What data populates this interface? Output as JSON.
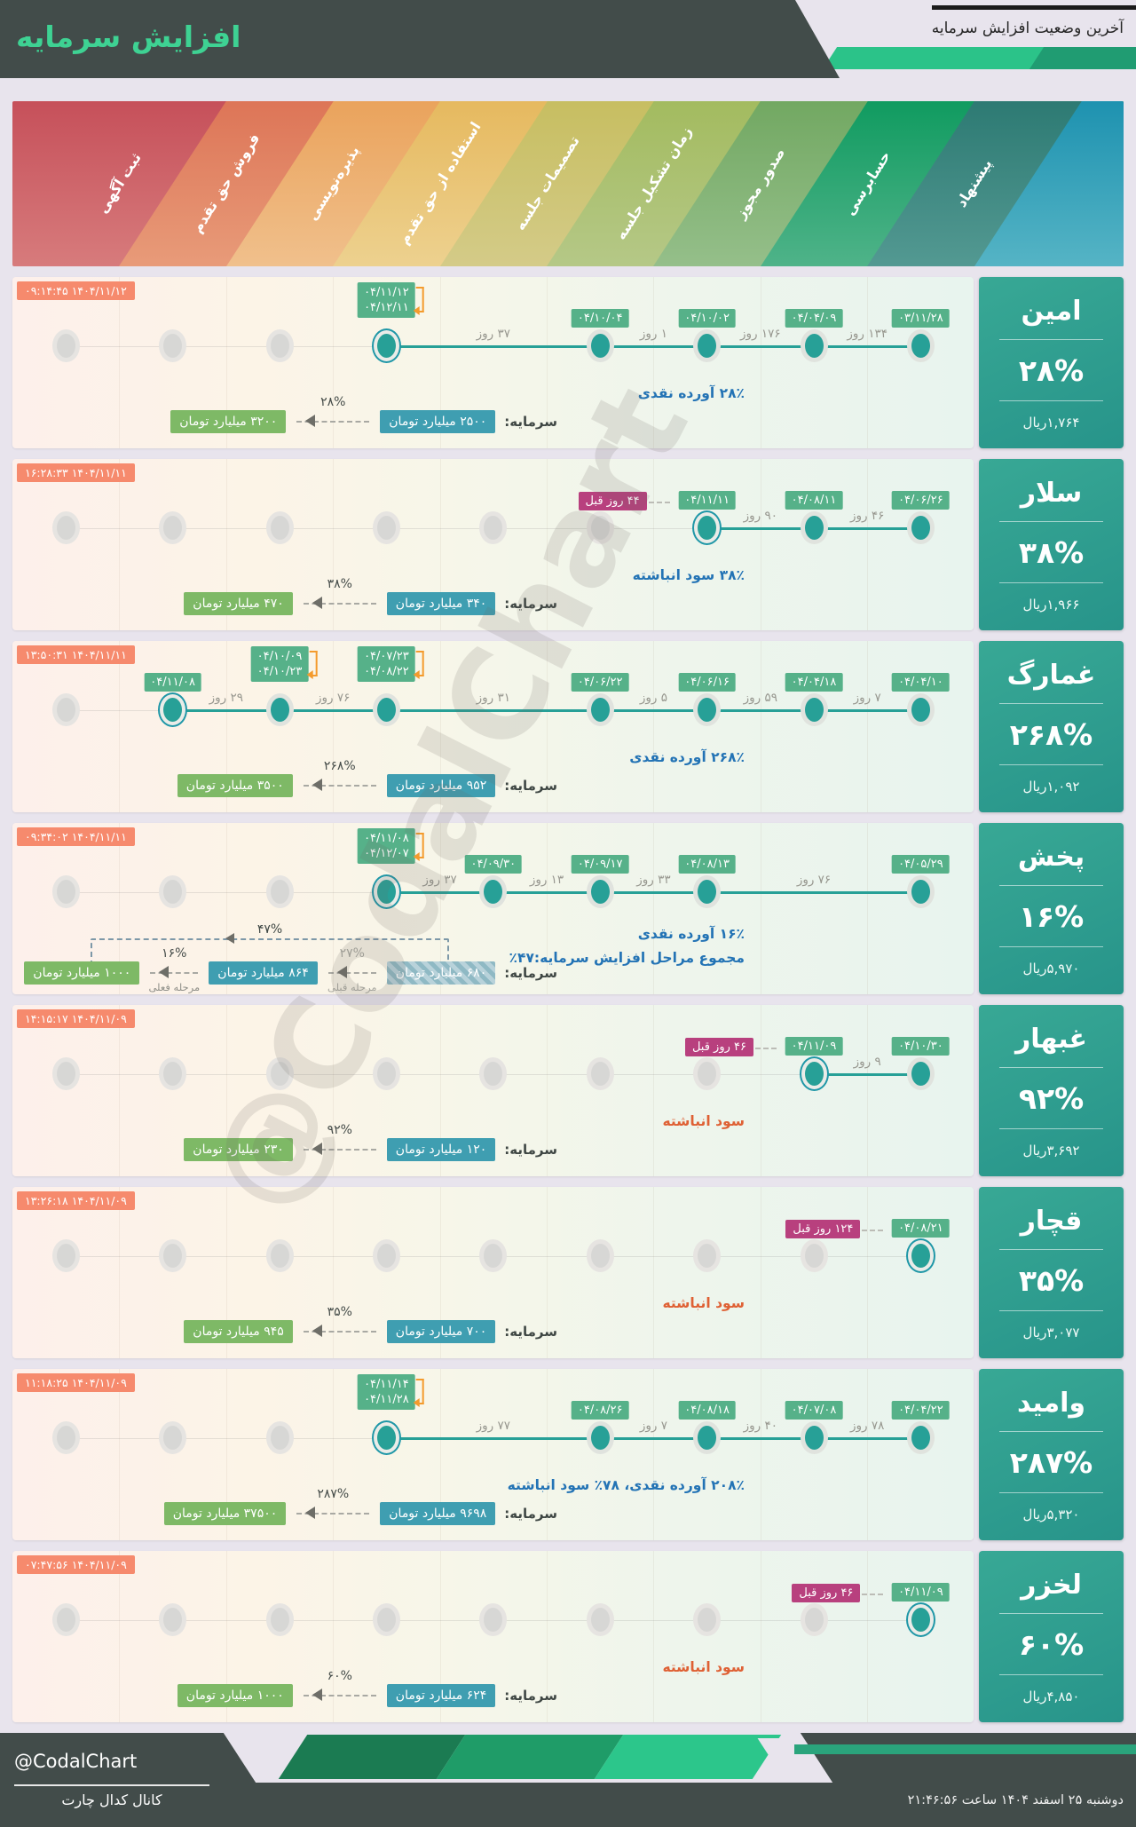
{
  "header": {
    "title": "افزایش سرمایه",
    "subtitle": "آخرین وضعیت افزایش سرمایه"
  },
  "watermark": "@CodalChart",
  "stages": [
    {
      "label": "ثبت آگهی",
      "top": "#c6505a",
      "bottom": "#d77b7c"
    },
    {
      "label": "فروش حق تقدم",
      "top": "#dd7557",
      "bottom": "#e89b79"
    },
    {
      "label": "پذیره‌نویسی",
      "top": "#eaa35c",
      "bottom": "#f0c08c"
    },
    {
      "label": "استفاده از حق تقدم",
      "top": "#e6b95f",
      "bottom": "#edd18f"
    },
    {
      "label": "تصمیمات جلسه",
      "top": "#c7be61",
      "bottom": "#d4cb88"
    },
    {
      "label": "زمان تشکیل جلسه",
      "top": "#a3bb5f",
      "bottom": "#b5c887"
    },
    {
      "label": "صدور مجوز",
      "top": "#72a862",
      "bottom": "#95bf8a"
    },
    {
      "label": "حسابرسی",
      "top": "#109b60",
      "bottom": "#4fb389"
    },
    {
      "label": "پیشنهاد",
      "top": "#2d7a73",
      "bottom": "#539992"
    }
  ],
  "banner_cap": {
    "top": "#1e92b0",
    "bottom": "#55b4c5"
  },
  "rows": [
    {
      "name": "امین",
      "timestamp": "۱۴۰۴/۱۱/۱۲ ۰۹:۱۴:۴۵",
      "dots": [
        {
          "col": 1,
          "state": "inactive"
        },
        {
          "col": 2,
          "state": "inactive"
        },
        {
          "col": 3,
          "state": "inactive"
        },
        {
          "col": 4,
          "state": "current",
          "dates": [
            "۰۴/۱۱/۱۲",
            "۰۴/۱۲/۱۱"
          ],
          "bracket": true
        },
        {
          "col": 6,
          "state": "done",
          "dates": [
            "۰۴/۱۰/۰۴"
          ]
        },
        {
          "col": 7,
          "state": "done",
          "dates": [
            "۰۴/۱۰/۰۲"
          ]
        },
        {
          "col": 8,
          "state": "done",
          "dates": [
            "۰۴/۰۴/۰۹"
          ]
        },
        {
          "col": 9,
          "state": "done",
          "dates": [
            "۰۳/۱۱/۲۸"
          ]
        }
      ],
      "line": {
        "from": 4,
        "to": 9
      },
      "gaps": [
        {
          "at": [
            4,
            6
          ],
          "label": "۳۷ روز"
        },
        {
          "at": [
            6,
            7
          ],
          "label": "۱ روز"
        },
        {
          "at": [
            7,
            8
          ],
          "label": "۱۷۶ روز"
        },
        {
          "at": [
            8,
            9
          ],
          "label": "۱۳۴ روز"
        }
      ],
      "desc": [
        {
          "text": "۲۸٪ آورده نقدی",
          "color": "blue"
        }
      ],
      "capital": {
        "label": "سرمایه:",
        "stages": [
          {
            "value": "۲۵۰۰ میلیارد تومان",
            "style": "teal"
          },
          {
            "arrow": true,
            "percent": "۲۸%"
          },
          {
            "value": "۳۲۰۰ میلیارد تومان",
            "style": "green"
          }
        ]
      },
      "card": {
        "name": "امین",
        "percent": "۲۸%",
        "price": "۱,۷۶۴ریال"
      }
    },
    {
      "name": "سلار",
      "timestamp": "۱۴۰۴/۱۱/۱۱ ۱۶:۲۸:۳۳",
      "dots": [
        {
          "col": 1,
          "state": "inactive"
        },
        {
          "col": 2,
          "state": "inactive"
        },
        {
          "col": 3,
          "state": "inactive"
        },
        {
          "col": 4,
          "state": "inactive"
        },
        {
          "col": 5,
          "state": "inactive"
        },
        {
          "col": 6,
          "state": "inactive"
        },
        {
          "col": 7,
          "state": "current",
          "dates": [
            "۰۴/۱۱/۱۱"
          ],
          "ago": "۴۴ روز قبل"
        },
        {
          "col": 8,
          "state": "done",
          "dates": [
            "۰۴/۰۸/۱۱"
          ]
        },
        {
          "col": 9,
          "state": "done",
          "dates": [
            "۰۴/۰۶/۲۶"
          ]
        }
      ],
      "line": {
        "from": 7,
        "to": 9
      },
      "gaps": [
        {
          "at": [
            7,
            8
          ],
          "label": "۹۰ روز"
        },
        {
          "at": [
            8,
            9
          ],
          "label": "۴۶ روز"
        }
      ],
      "desc": [
        {
          "text": "۳۸٪ سود انباشته",
          "color": "blue"
        }
      ],
      "capital": {
        "label": "سرمایه:",
        "stages": [
          {
            "value": "۳۴۰ میلیارد تومان",
            "style": "teal"
          },
          {
            "arrow": true,
            "percent": "۳۸%"
          },
          {
            "value": "۴۷۰ میلیارد تومان",
            "style": "green"
          }
        ]
      },
      "card": {
        "name": "سلار",
        "percent": "۳۸%",
        "price": "۱,۹۶۶ریال"
      }
    },
    {
      "name": "غمارگ",
      "timestamp": "۱۴۰۴/۱۱/۱۱ ۱۳:۵۰:۳۱",
      "dots": [
        {
          "col": 1,
          "state": "inactive"
        },
        {
          "col": 2,
          "state": "current",
          "dates": [
            "۰۴/۱۱/۰۸"
          ]
        },
        {
          "col": 3,
          "state": "done",
          "dates": [
            "۰۴/۱۰/۰۹",
            "۰۴/۱۰/۲۳"
          ],
          "bracket": true
        },
        {
          "col": 4,
          "state": "done",
          "dates": [
            "۰۴/۰۷/۲۳",
            "۰۴/۰۸/۲۲"
          ],
          "bracket": true
        },
        {
          "col": 6,
          "state": "done",
          "dates": [
            "۰۴/۰۶/۲۲"
          ]
        },
        {
          "col": 7,
          "state": "done",
          "dates": [
            "۰۴/۰۶/۱۶"
          ]
        },
        {
          "col": 8,
          "state": "done",
          "dates": [
            "۰۴/۰۴/۱۸"
          ]
        },
        {
          "col": 9,
          "state": "done",
          "dates": [
            "۰۴/۰۴/۱۰"
          ]
        }
      ],
      "line": {
        "from": 2,
        "to": 9
      },
      "gaps": [
        {
          "at": [
            2,
            3
          ],
          "label": "۲۹ روز"
        },
        {
          "at": [
            3,
            4
          ],
          "label": "۷۶ روز"
        },
        {
          "at": [
            4,
            6
          ],
          "label": "۳۱ روز"
        },
        {
          "at": [
            6,
            7
          ],
          "label": "۵ روز"
        },
        {
          "at": [
            7,
            8
          ],
          "label": "۵۹ روز"
        },
        {
          "at": [
            8,
            9
          ],
          "label": "۷ روز"
        }
      ],
      "desc": [
        {
          "text": "۲۶۸٪ آورده نقدی",
          "color": "blue"
        }
      ],
      "capital": {
        "label": "سرمایه:",
        "stages": [
          {
            "value": "۹۵۲ میلیارد تومان",
            "style": "teal"
          },
          {
            "arrow": true,
            "percent": "۲۶۸%"
          },
          {
            "value": "۳۵۰۰ میلیارد تومان",
            "style": "green"
          }
        ]
      },
      "card": {
        "name": "غمارگ",
        "percent": "۲۶۸%",
        "price": "۱,۰۹۲ریال"
      }
    },
    {
      "name": "پخش",
      "timestamp": "۱۴۰۴/۱۱/۱۱ ۰۹:۳۴:۰۲",
      "dots": [
        {
          "col": 1,
          "state": "inactive"
        },
        {
          "col": 2,
          "state": "inactive"
        },
        {
          "col": 3,
          "state": "inactive"
        },
        {
          "col": 4,
          "state": "current",
          "dates": [
            "۰۴/۱۱/۰۸",
            "۰۴/۱۲/۰۷"
          ],
          "bracket": true
        },
        {
          "col": 5,
          "state": "done",
          "dates": [
            "۰۴/۰۹/۳۰"
          ]
        },
        {
          "col": 6,
          "state": "done",
          "dates": [
            "۰۴/۰۹/۱۷"
          ]
        },
        {
          "col": 7,
          "state": "done",
          "dates": [
            "۰۴/۰۸/۱۳"
          ]
        },
        {
          "col": 9,
          "state": "done",
          "dates": [
            "۰۴/۰۵/۲۹"
          ]
        }
      ],
      "line": {
        "from": 4,
        "to": 9
      },
      "gaps": [
        {
          "at": [
            4,
            5
          ],
          "label": "۳۷ روز"
        },
        {
          "at": [
            5,
            6
          ],
          "label": "۱۳ روز"
        },
        {
          "at": [
            6,
            7
          ],
          "label": "۳۳ روز"
        },
        {
          "at": [
            7,
            9
          ],
          "label": "۷۶ روز"
        }
      ],
      "desc": [
        {
          "text": "۱۶٪ آورده نقدی",
          "color": "blue"
        },
        {
          "text": "مجموع مراحل افزایش سرمایه:۴۷٪",
          "color": "blue"
        }
      ],
      "capital": {
        "label": "سرمایه:",
        "stages": [
          {
            "value": "۶۸۰ میلیارد تومان",
            "style": "hatched"
          },
          {
            "arrow": true,
            "percent": "۲۷%",
            "sub": "مرحله قبلی",
            "dim": true
          },
          {
            "value": "۸۶۴ میلیارد تومان",
            "style": "teal"
          },
          {
            "arrow": true,
            "percent": "۱۶%",
            "sub": "مرحله فعلی"
          },
          {
            "value": "۱۰۰۰ میلیارد تومان",
            "style": "green"
          }
        ],
        "total": {
          "percent": "۴۷%"
        }
      },
      "card": {
        "name": "پخش",
        "percent": "۱۶%",
        "price": "۵,۹۷۰ریال"
      }
    },
    {
      "name": "غبهار",
      "timestamp": "۱۴۰۴/۱۱/۰۹ ۱۴:۱۵:۱۷",
      "dots": [
        {
          "col": 1,
          "state": "inactive"
        },
        {
          "col": 2,
          "state": "inactive"
        },
        {
          "col": 3,
          "state": "inactive"
        },
        {
          "col": 4,
          "state": "inactive"
        },
        {
          "col": 5,
          "state": "inactive"
        },
        {
          "col": 6,
          "state": "inactive"
        },
        {
          "col": 7,
          "state": "inactive"
        },
        {
          "col": 8,
          "state": "current",
          "dates": [
            "۰۴/۱۱/۰۹"
          ],
          "ago": "۴۶ روز قبل"
        },
        {
          "col": 9,
          "state": "done",
          "dates": [
            "۰۴/۱۰/۳۰"
          ]
        }
      ],
      "line": {
        "from": 8,
        "to": 9
      },
      "gaps": [
        {
          "at": [
            8,
            9
          ],
          "label": "۹ روز"
        }
      ],
      "desc": [
        {
          "text": "سود انباشته",
          "color": "orange"
        }
      ],
      "capital": {
        "label": "سرمایه:",
        "stages": [
          {
            "value": "۱۲۰ میلیارد تومان",
            "style": "teal"
          },
          {
            "arrow": true,
            "percent": "۹۲%"
          },
          {
            "value": "۲۳۰ میلیارد تومان",
            "style": "green"
          }
        ]
      },
      "card": {
        "name": "غبهار",
        "percent": "۹۲%",
        "price": "۳,۶۹۲ریال"
      }
    },
    {
      "name": "قچار",
      "timestamp": "۱۴۰۴/۱۱/۰۹ ۱۳:۲۶:۱۸",
      "dots": [
        {
          "col": 1,
          "state": "inactive"
        },
        {
          "col": 2,
          "state": "inactive"
        },
        {
          "col": 3,
          "state": "inactive"
        },
        {
          "col": 4,
          "state": "inactive"
        },
        {
          "col": 5,
          "state": "inactive"
        },
        {
          "col": 6,
          "state": "inactive"
        },
        {
          "col": 7,
          "state": "inactive"
        },
        {
          "col": 8,
          "state": "inactive"
        },
        {
          "col": 9,
          "state": "current",
          "dates": [
            "۰۴/۰۸/۲۱"
          ],
          "ago": "۱۲۴ روز قبل"
        }
      ],
      "gaps": [],
      "desc": [
        {
          "text": "سود انباشته",
          "color": "orange"
        }
      ],
      "capital": {
        "label": "سرمایه:",
        "stages": [
          {
            "value": "۷۰۰ میلیارد تومان",
            "style": "teal"
          },
          {
            "arrow": true,
            "percent": "۳۵%"
          },
          {
            "value": "۹۴۵ میلیارد تومان",
            "style": "green"
          }
        ]
      },
      "card": {
        "name": "قچار",
        "percent": "۳۵%",
        "price": "۳,۰۷۷ریال"
      }
    },
    {
      "name": "وامید",
      "timestamp": "۱۴۰۴/۱۱/۰۹ ۱۱:۱۸:۲۵",
      "dots": [
        {
          "col": 1,
          "state": "inactive"
        },
        {
          "col": 2,
          "state": "inactive"
        },
        {
          "col": 3,
          "state": "inactive"
        },
        {
          "col": 4,
          "state": "current",
          "dates": [
            "۰۴/۱۱/۱۴",
            "۰۴/۱۱/۲۸"
          ],
          "bracket": true
        },
        {
          "col": 6,
          "state": "done",
          "dates": [
            "۰۴/۰۸/۲۶"
          ]
        },
        {
          "col": 7,
          "state": "done",
          "dates": [
            "۰۴/۰۸/۱۸"
          ]
        },
        {
          "col": 8,
          "state": "done",
          "dates": [
            "۰۴/۰۷/۰۸"
          ]
        },
        {
          "col": 9,
          "state": "done",
          "dates": [
            "۰۴/۰۴/۲۲"
          ]
        }
      ],
      "line": {
        "from": 4,
        "to": 9
      },
      "gaps": [
        {
          "at": [
            4,
            6
          ],
          "label": "۷۷ روز"
        },
        {
          "at": [
            6,
            7
          ],
          "label": "۷ روز"
        },
        {
          "at": [
            7,
            8
          ],
          "label": "۴۰ روز"
        },
        {
          "at": [
            8,
            9
          ],
          "label": "۷۸ روز"
        }
      ],
      "desc": [
        {
          "text": "۲۰۸٪ آورده نقدی، ۷۸٪ سود انباشته",
          "color": "blue"
        }
      ],
      "capital": {
        "label": "سرمایه:",
        "stages": [
          {
            "value": "۹۶۹۸ میلیارد تومان",
            "style": "teal"
          },
          {
            "arrow": true,
            "percent": "۲۸۷%"
          },
          {
            "value": "۳۷۵۰۰ میلیارد تومان",
            "style": "green"
          }
        ]
      },
      "card": {
        "name": "وامید",
        "percent": "۲۸۷%",
        "price": "۵,۳۲۰ریال"
      }
    },
    {
      "name": "لخزر",
      "timestamp": "۱۴۰۴/۱۱/۰۹ ۰۷:۴۷:۵۶",
      "dots": [
        {
          "col": 1,
          "state": "inactive"
        },
        {
          "col": 2,
          "state": "inactive"
        },
        {
          "col": 3,
          "state": "inactive"
        },
        {
          "col": 4,
          "state": "inactive"
        },
        {
          "col": 5,
          "state": "inactive"
        },
        {
          "col": 6,
          "state": "inactive"
        },
        {
          "col": 7,
          "state": "inactive"
        },
        {
          "col": 8,
          "state": "inactive"
        },
        {
          "col": 9,
          "state": "current",
          "dates": [
            "۰۴/۱۱/۰۹"
          ],
          "ago": "۴۶ روز قبل"
        }
      ],
      "gaps": [],
      "desc": [
        {
          "text": "سود انباشته",
          "color": "orange"
        }
      ],
      "capital": {
        "label": "سرمایه:",
        "stages": [
          {
            "value": "۶۲۴ میلیارد تومان",
            "style": "teal"
          },
          {
            "arrow": true,
            "percent": "۶۰%"
          },
          {
            "value": "۱۰۰۰ میلیارد تومان",
            "style": "green"
          }
        ]
      },
      "card": {
        "name": "لخزر",
        "percent": "۶۰%",
        "price": "۴,۸۵۰ریال"
      }
    }
  ],
  "footer": {
    "handle": "@CodalChart",
    "channel": "کانال کدال چارت",
    "datetime": "دوشنبه ۲۵ اسفند ۱۴۰۴ ساعت ۲۱:۴۶:۵۶"
  }
}
